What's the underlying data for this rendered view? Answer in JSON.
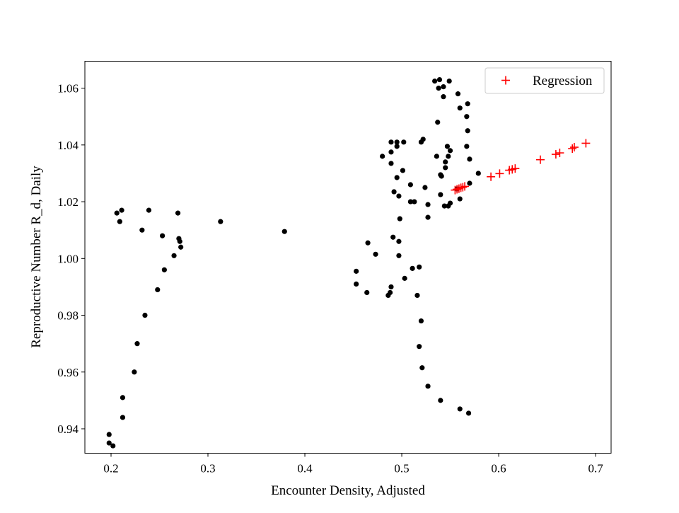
{
  "chart_data": {
    "type": "scatter",
    "title": "",
    "xlabel": "Encounter Density, Adjusted",
    "ylabel": "Reproductive Number R_d, Daily",
    "xlim": [
      0.173,
      0.716
    ],
    "ylim": [
      0.9314,
      1.0695
    ],
    "xticks": [
      0.2,
      0.3,
      0.4,
      0.5,
      0.6,
      0.7
    ],
    "xtick_labels": [
      "0.2",
      "0.3",
      "0.4",
      "0.5",
      "0.6",
      "0.7"
    ],
    "yticks": [
      0.94,
      0.96,
      0.98,
      1.0,
      1.02,
      1.04,
      1.06
    ],
    "ytick_labels": [
      "0.94",
      "0.96",
      "0.98",
      "1.00",
      "1.02",
      "1.04",
      "1.06"
    ],
    "grid": false,
    "legend_position": "top-right",
    "legend_entries": [
      "Regression"
    ],
    "colors": {
      "observed": "#000000",
      "regression": "#ff0000"
    },
    "series": [
      {
        "marker": "dot",
        "points": [
          [
            0.198,
            0.938
          ],
          [
            0.198,
            0.935
          ],
          [
            0.202,
            0.934
          ],
          [
            0.212,
            0.944
          ],
          [
            0.212,
            0.951
          ],
          [
            0.224,
            0.96
          ],
          [
            0.227,
            0.97
          ],
          [
            0.235,
            0.98
          ],
          [
            0.248,
            0.989
          ],
          [
            0.255,
            0.996
          ],
          [
            0.265,
            1.001
          ],
          [
            0.272,
            1.004
          ],
          [
            0.271,
            1.006
          ],
          [
            0.27,
            1.007
          ],
          [
            0.253,
            1.008
          ],
          [
            0.232,
            1.01
          ],
          [
            0.209,
            1.013
          ],
          [
            0.206,
            1.016
          ],
          [
            0.211,
            1.017
          ],
          [
            0.239,
            1.017
          ],
          [
            0.269,
            1.016
          ],
          [
            0.313,
            1.013
          ],
          [
            0.379,
            1.0095
          ],
          [
            0.465,
            1.0055
          ],
          [
            0.473,
            1.0015
          ],
          [
            0.453,
            0.9955
          ],
          [
            0.453,
            0.991
          ],
          [
            0.464,
            0.988
          ],
          [
            0.486,
            0.987
          ],
          [
            0.488,
            0.988
          ],
          [
            0.489,
            0.99
          ],
          [
            0.491,
            1.0075
          ],
          [
            0.497,
            1.006
          ],
          [
            0.497,
            1.001
          ],
          [
            0.503,
            0.993
          ],
          [
            0.511,
            0.9965
          ],
          [
            0.518,
            0.997
          ],
          [
            0.516,
            0.987
          ],
          [
            0.52,
            0.978
          ],
          [
            0.518,
            0.969
          ],
          [
            0.521,
            0.9615
          ],
          [
            0.527,
            0.955
          ],
          [
            0.54,
            0.95
          ],
          [
            0.56,
            0.947
          ],
          [
            0.569,
            0.9455
          ],
          [
            0.492,
            1.0235
          ],
          [
            0.497,
            1.022
          ],
          [
            0.509,
            1.02
          ],
          [
            0.513,
            1.02
          ],
          [
            0.498,
            1.014
          ],
          [
            0.527,
            1.0145
          ],
          [
            0.527,
            1.019
          ],
          [
            0.544,
            1.0185
          ],
          [
            0.548,
            1.0185
          ],
          [
            0.55,
            1.0195
          ],
          [
            0.54,
            1.0225
          ],
          [
            0.524,
            1.025
          ],
          [
            0.509,
            1.026
          ],
          [
            0.495,
            1.0285
          ],
          [
            0.501,
            1.031
          ],
          [
            0.489,
            1.0335
          ],
          [
            0.48,
            1.036
          ],
          [
            0.489,
            1.0375
          ],
          [
            0.495,
            1.0395
          ],
          [
            0.489,
            1.041
          ],
          [
            0.495,
            1.041
          ],
          [
            0.502,
            1.041
          ],
          [
            0.52,
            1.041
          ],
          [
            0.522,
            1.042
          ],
          [
            0.536,
            1.036
          ],
          [
            0.54,
            1.0295
          ],
          [
            0.541,
            1.029
          ],
          [
            0.545,
            1.032
          ],
          [
            0.545,
            1.034
          ],
          [
            0.548,
            1.036
          ],
          [
            0.55,
            1.038
          ],
          [
            0.547,
            1.0395
          ],
          [
            0.557,
            1.0245
          ],
          [
            0.56,
            1.021
          ],
          [
            0.57,
            1.0265
          ],
          [
            0.579,
            1.03
          ],
          [
            0.57,
            1.035
          ],
          [
            0.567,
            1.0395
          ],
          [
            0.568,
            1.045
          ],
          [
            0.567,
            1.05
          ],
          [
            0.568,
            1.0545
          ],
          [
            0.56,
            1.053
          ],
          [
            0.558,
            1.058
          ],
          [
            0.543,
            1.057
          ],
          [
            0.537,
            1.048
          ],
          [
            0.534,
            1.0625
          ],
          [
            0.539,
            1.063
          ],
          [
            0.549,
            1.0625
          ],
          [
            0.538,
            1.06
          ],
          [
            0.543,
            1.0605
          ]
        ]
      },
      {
        "name": "Regression",
        "marker": "plus",
        "points": [
          [
            0.555,
            1.0241
          ],
          [
            0.557,
            1.0244
          ],
          [
            0.559,
            1.0246
          ],
          [
            0.561,
            1.0249
          ],
          [
            0.563,
            1.0251
          ],
          [
            0.565,
            1.0254
          ],
          [
            0.592,
            1.0288
          ],
          [
            0.601,
            1.0299
          ],
          [
            0.611,
            1.0311
          ],
          [
            0.614,
            1.0314
          ],
          [
            0.617,
            1.0317
          ],
          [
            0.643,
            1.0348
          ],
          [
            0.659,
            1.0367
          ],
          [
            0.663,
            1.0372
          ],
          [
            0.676,
            1.0387
          ],
          [
            0.678,
            1.0392
          ],
          [
            0.69,
            1.0406
          ]
        ]
      }
    ]
  }
}
